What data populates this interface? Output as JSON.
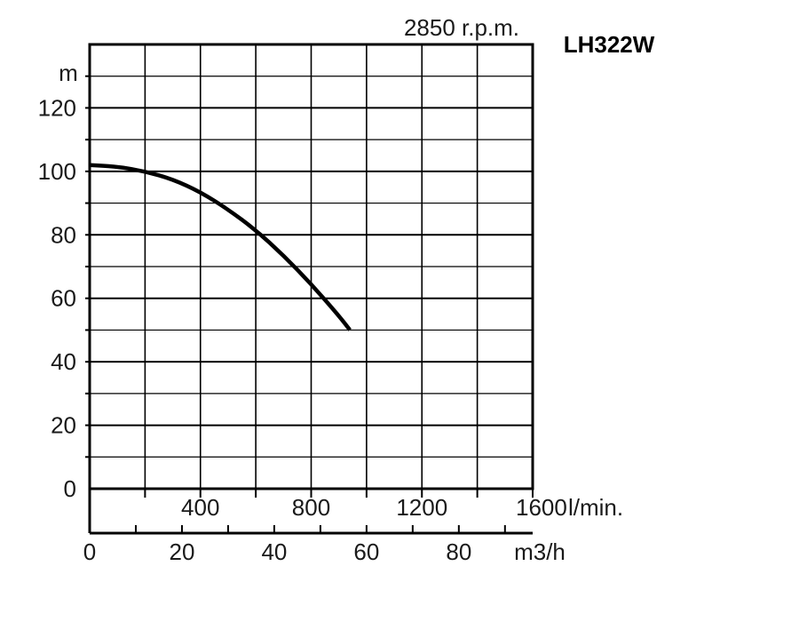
{
  "chart_data": {
    "type": "line",
    "title": "LH322W",
    "speed_label": "2850 r.p.m.",
    "ylabel": "m",
    "ylim": [
      0,
      140
    ],
    "yticks": [
      0,
      20,
      40,
      60,
      80,
      100,
      120
    ],
    "x_lmin": {
      "unit": "l/min.",
      "range": [
        0,
        1600
      ],
      "ticks": [
        400,
        800,
        1200,
        1600
      ]
    },
    "x_m3h": {
      "unit": "m3/h",
      "range": [
        0,
        96
      ],
      "ticks": [
        0,
        20,
        40,
        60,
        80
      ]
    },
    "grid": true,
    "series": [
      {
        "x_lmin": [
          0,
          100,
          200,
          300,
          400,
          500,
          600,
          700,
          800,
          900,
          940
        ],
        "y": [
          102,
          101.5,
          100,
          97.5,
          93.5,
          88,
          81.5,
          73.5,
          64.5,
          54.5,
          50
        ]
      }
    ]
  }
}
